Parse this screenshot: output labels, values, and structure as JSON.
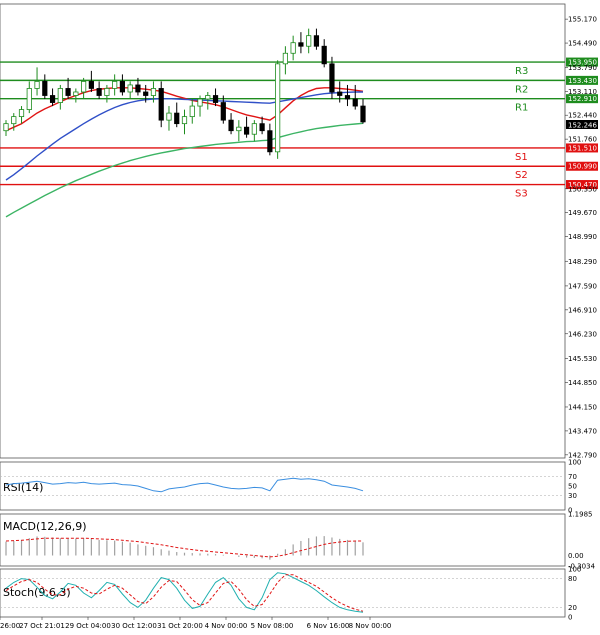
{
  "chart_data": {
    "type": "candlestick",
    "price_axis": {
      "ticks": [
        "155.170",
        "154.490",
        "153.790",
        "153.110",
        "152.440",
        "151.760",
        "150.350",
        "149.670",
        "148.990",
        "148.290",
        "147.590",
        "146.910",
        "146.230",
        "145.530",
        "144.850",
        "144.150",
        "143.470",
        "142.790"
      ],
      "ylim": [
        142.7,
        155.6
      ],
      "current_price": "152.246"
    },
    "x_labels": [
      "26:00",
      "27 Oct 21:01",
      "29 Oct 04:00",
      "30 Oct 12:00",
      "31 Oct 20:00",
      "4 Nov 00:00",
      "5 Nov 08:00",
      "6 Nov 16:00",
      "8 Nov 00:00"
    ],
    "levels": [
      {
        "name": "R3",
        "value": 153.95,
        "label": "153.950",
        "color": "#1e8c1e"
      },
      {
        "name": "R2",
        "value": 153.43,
        "label": "153.430",
        "color": "#1e8c1e"
      },
      {
        "name": "R1",
        "value": 152.91,
        "label": "152.910",
        "color": "#1e8c1e"
      },
      {
        "name": "S1",
        "value": 151.51,
        "label": "151.510",
        "color": "#e01010"
      },
      {
        "name": "S2",
        "value": 150.99,
        "label": "150.990",
        "color": "#e01010"
      },
      {
        "name": "S3",
        "value": 150.47,
        "label": "150.470",
        "color": "#e01010"
      }
    ],
    "candles": [
      [
        152.0,
        152.3,
        151.85,
        152.2
      ],
      [
        152.2,
        152.5,
        152.0,
        152.4
      ],
      [
        152.4,
        152.7,
        152.2,
        152.6
      ],
      [
        152.6,
        153.4,
        152.5,
        153.2
      ],
      [
        153.2,
        153.8,
        153.0,
        153.4
      ],
      [
        153.4,
        153.6,
        152.9,
        153.0
      ],
      [
        153.0,
        153.2,
        152.7,
        152.8
      ],
      [
        152.8,
        153.3,
        152.6,
        153.2
      ],
      [
        153.2,
        153.5,
        152.9,
        153.0
      ],
      [
        153.0,
        153.2,
        152.8,
        153.1
      ],
      [
        153.1,
        153.5,
        152.9,
        153.4
      ],
      [
        153.4,
        153.7,
        153.1,
        153.2
      ],
      [
        153.2,
        153.4,
        152.9,
        153.0
      ],
      [
        153.0,
        153.3,
        152.8,
        153.2
      ],
      [
        153.2,
        153.6,
        153.0,
        153.4
      ],
      [
        153.4,
        153.6,
        153.0,
        153.1
      ],
      [
        153.1,
        153.4,
        152.9,
        153.3
      ],
      [
        153.3,
        153.5,
        153.0,
        153.1
      ],
      [
        153.1,
        153.3,
        152.8,
        153.0
      ],
      [
        153.0,
        153.4,
        152.8,
        153.2
      ],
      [
        153.2,
        153.4,
        152.1,
        152.3
      ],
      [
        152.3,
        152.7,
        152.0,
        152.5
      ],
      [
        152.5,
        152.8,
        152.1,
        152.2
      ],
      [
        152.2,
        152.6,
        151.9,
        152.4
      ],
      [
        152.4,
        152.9,
        152.2,
        152.7
      ],
      [
        152.7,
        153.0,
        152.4,
        152.9
      ],
      [
        152.9,
        153.1,
        152.6,
        153.0
      ],
      [
        153.0,
        153.2,
        152.7,
        152.8
      ],
      [
        152.8,
        153.0,
        152.2,
        152.3
      ],
      [
        152.3,
        152.5,
        151.9,
        152.0
      ],
      [
        152.0,
        152.3,
        151.7,
        152.1
      ],
      [
        152.1,
        152.4,
        151.8,
        151.9
      ],
      [
        151.9,
        152.3,
        151.7,
        152.2
      ],
      [
        152.2,
        152.4,
        151.9,
        152.0
      ],
      [
        152.0,
        152.2,
        151.3,
        151.4
      ],
      [
        151.4,
        154.0,
        151.2,
        153.9
      ],
      [
        153.9,
        154.4,
        153.6,
        154.2
      ],
      [
        154.2,
        154.7,
        154.0,
        154.5
      ],
      [
        154.5,
        154.8,
        154.2,
        154.4
      ],
      [
        154.4,
        154.9,
        154.2,
        154.7
      ],
      [
        154.7,
        154.9,
        154.3,
        154.4
      ],
      [
        154.4,
        154.6,
        153.8,
        153.9
      ],
      [
        153.9,
        154.1,
        152.9,
        153.1
      ],
      [
        153.1,
        153.4,
        152.8,
        153.0
      ],
      [
        153.0,
        153.3,
        152.7,
        152.9
      ],
      [
        152.9,
        153.3,
        152.6,
        152.7
      ],
      [
        152.7,
        152.9,
        152.2,
        152.25
      ]
    ],
    "series": [
      {
        "name": "",
        "color": "#e01414",
        "values": [
          152.0,
          152.1,
          152.2,
          152.35,
          152.5,
          152.62,
          152.72,
          152.82,
          152.92,
          153.0,
          153.08,
          153.14,
          153.18,
          153.2,
          153.22,
          153.22,
          153.22,
          153.2,
          153.18,
          153.15,
          153.12,
          153.05,
          152.98,
          152.92,
          152.86,
          152.82,
          152.78,
          152.74,
          152.68,
          152.6,
          152.52,
          152.45,
          152.4,
          152.35,
          152.3,
          152.45,
          152.65,
          152.85,
          153.0,
          153.12,
          153.2,
          153.22,
          153.22,
          153.2,
          153.18,
          153.15,
          153.12
        ]
      },
      {
        "name": "",
        "color": "#3050c8",
        "values": [
          150.6,
          150.75,
          150.92,
          151.1,
          151.28,
          151.45,
          151.62,
          151.78,
          151.92,
          152.06,
          152.2,
          152.33,
          152.45,
          152.56,
          152.66,
          152.74,
          152.8,
          152.85,
          152.88,
          152.9,
          152.91,
          152.91,
          152.9,
          152.89,
          152.88,
          152.87,
          152.86,
          152.85,
          152.84,
          152.83,
          152.82,
          152.81,
          152.8,
          152.79,
          152.78,
          152.82,
          152.86,
          152.9,
          152.94,
          152.98,
          153.02,
          153.05,
          153.07,
          153.08,
          153.09,
          153.1,
          153.1
        ]
      },
      {
        "name": "",
        "color": "#3cb464",
        "values": [
          149.55,
          149.68,
          149.8,
          149.92,
          150.04,
          150.16,
          150.27,
          150.38,
          150.48,
          150.58,
          150.67,
          150.76,
          150.85,
          150.93,
          151.01,
          151.08,
          151.15,
          151.21,
          151.27,
          151.32,
          151.37,
          151.41,
          151.45,
          151.49,
          151.52,
          151.55,
          151.58,
          151.61,
          151.63,
          151.65,
          151.67,
          151.69,
          151.7,
          151.72,
          151.73,
          151.8,
          151.86,
          151.92,
          151.97,
          152.02,
          152.06,
          152.09,
          152.12,
          152.15,
          152.17,
          152.19,
          152.21
        ]
      }
    ],
    "rsi": {
      "label": "RSI(14)",
      "ticks": [
        "100",
        "70",
        "50",
        "30",
        "0"
      ],
      "values": [
        52,
        55,
        56,
        58,
        60,
        57,
        54,
        55,
        57,
        56,
        58,
        55,
        54,
        55,
        56,
        53,
        52,
        50,
        45,
        40,
        38,
        44,
        46,
        48,
        52,
        55,
        56,
        52,
        48,
        45,
        44,
        45,
        47,
        46,
        40,
        62,
        64,
        66,
        64,
        65,
        63,
        60,
        52,
        50,
        48,
        45,
        40
      ]
    },
    "macd": {
      "label": "MACD(12,26,9)",
      "ticks": [
        "1.1985",
        "0.00",
        "-0.3034"
      ],
      "hist": [
        0.4,
        0.42,
        0.45,
        0.5,
        0.55,
        0.54,
        0.52,
        0.5,
        0.5,
        0.49,
        0.5,
        0.48,
        0.45,
        0.44,
        0.43,
        0.4,
        0.37,
        0.32,
        0.28,
        0.24,
        0.18,
        0.14,
        0.1,
        0.08,
        0.07,
        0.06,
        0.05,
        0.04,
        0.02,
        0.0,
        -0.04,
        -0.06,
        -0.07,
        -0.08,
        -0.12,
        0.05,
        0.18,
        0.32,
        0.42,
        0.5,
        0.55,
        0.56,
        0.52,
        0.48,
        0.45,
        0.42,
        0.38
      ],
      "signal": [
        0.42,
        0.43,
        0.44,
        0.46,
        0.48,
        0.5,
        0.5,
        0.5,
        0.5,
        0.5,
        0.5,
        0.49,
        0.48,
        0.47,
        0.46,
        0.44,
        0.42,
        0.4,
        0.37,
        0.34,
        0.31,
        0.27,
        0.23,
        0.2,
        0.17,
        0.14,
        0.12,
        0.1,
        0.08,
        0.06,
        0.04,
        0.02,
        0.0,
        -0.02,
        -0.04,
        -0.02,
        0.02,
        0.08,
        0.14,
        0.2,
        0.26,
        0.32,
        0.36,
        0.39,
        0.41,
        0.42,
        0.42
      ]
    },
    "stoch": {
      "label": "Stoch(9,6,3)",
      "ticks": [
        "100",
        "80",
        "20",
        "0"
      ],
      "k": [
        60,
        72,
        80,
        78,
        62,
        45,
        38,
        52,
        70,
        66,
        50,
        40,
        55,
        72,
        68,
        48,
        30,
        20,
        35,
        60,
        82,
        78,
        60,
        35,
        18,
        22,
        48,
        72,
        82,
        66,
        38,
        20,
        15,
        40,
        78,
        92,
        90,
        82,
        74,
        66,
        55,
        42,
        30,
        20,
        15,
        12,
        10
      ],
      "d": [
        55,
        65,
        74,
        78,
        72,
        58,
        46,
        46,
        58,
        64,
        60,
        50,
        48,
        58,
        66,
        60,
        46,
        32,
        28,
        42,
        62,
        76,
        74,
        56,
        36,
        24,
        30,
        50,
        70,
        74,
        58,
        36,
        22,
        26,
        48,
        72,
        88,
        88,
        80,
        72,
        64,
        52,
        40,
        30,
        22,
        16,
        12
      ]
    }
  }
}
